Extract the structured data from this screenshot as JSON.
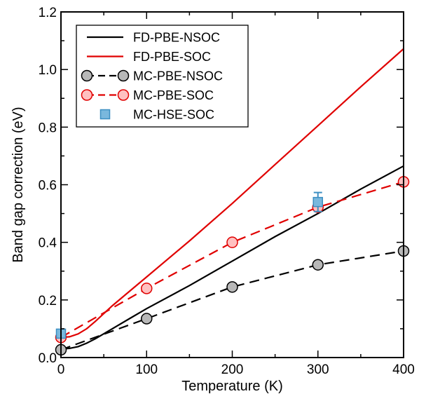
{
  "chart_data": {
    "type": "line",
    "xlabel": "Temperature (K)",
    "ylabel": "Band gap correction (eV)",
    "xlim": [
      0,
      400
    ],
    "ylim": [
      0,
      1.2
    ],
    "xticks": [
      "0",
      "100",
      "200",
      "300",
      "400"
    ],
    "yticks": [
      "0.0",
      "0.2",
      "0.4",
      "0.6",
      "0.8",
      "1.0",
      "1.2"
    ],
    "grid": false,
    "legend_position": "top-left",
    "series": [
      {
        "name": "FD-PBE-NSOC",
        "style": "line",
        "color": "#000000",
        "points": [
          [
            0,
            0.03
          ],
          [
            10,
            0.032
          ],
          [
            20,
            0.038
          ],
          [
            30,
            0.05
          ],
          [
            40,
            0.065
          ],
          [
            60,
            0.1
          ],
          [
            80,
            0.135
          ],
          [
            100,
            0.17
          ],
          [
            150,
            0.25
          ],
          [
            200,
            0.335
          ],
          [
            250,
            0.42
          ],
          [
            300,
            0.5
          ],
          [
            350,
            0.585
          ],
          [
            400,
            0.665
          ]
        ]
      },
      {
        "name": "FD-PBE-SOC",
        "style": "line",
        "color": "#e00000",
        "points": [
          [
            0,
            0.07
          ],
          [
            10,
            0.072
          ],
          [
            20,
            0.082
          ],
          [
            30,
            0.1
          ],
          [
            40,
            0.125
          ],
          [
            60,
            0.18
          ],
          [
            80,
            0.23
          ],
          [
            100,
            0.28
          ],
          [
            150,
            0.405
          ],
          [
            200,
            0.535
          ],
          [
            250,
            0.67
          ],
          [
            300,
            0.805
          ],
          [
            350,
            0.94
          ],
          [
            400,
            1.072
          ]
        ]
      },
      {
        "name": "MC-PBE-NSOC",
        "style": "dashed-markers",
        "marker": "circle",
        "color": "#000000",
        "marker_fill": "#b8b8b8",
        "points": [
          [
            0,
            0.027
          ],
          [
            100,
            0.135
          ],
          [
            200,
            0.245
          ],
          [
            300,
            0.322
          ],
          [
            400,
            0.37
          ]
        ]
      },
      {
        "name": "MC-PBE-SOC",
        "style": "dashed-markers",
        "marker": "circle",
        "color": "#e00000",
        "marker_fill": "#ffc0c0",
        "points": [
          [
            0,
            0.07
          ],
          [
            100,
            0.24
          ],
          [
            200,
            0.4
          ],
          [
            300,
            0.522
          ],
          [
            400,
            0.61
          ]
        ]
      },
      {
        "name": "MC-HSE-SOC",
        "style": "markers",
        "marker": "square",
        "color": "#3d8fc2",
        "marker_fill": "#7ab8dd",
        "points": [
          [
            0,
            0.083
          ],
          [
            300,
            0.54
          ]
        ],
        "error": [
          0.01,
          0.033
        ]
      }
    ]
  }
}
